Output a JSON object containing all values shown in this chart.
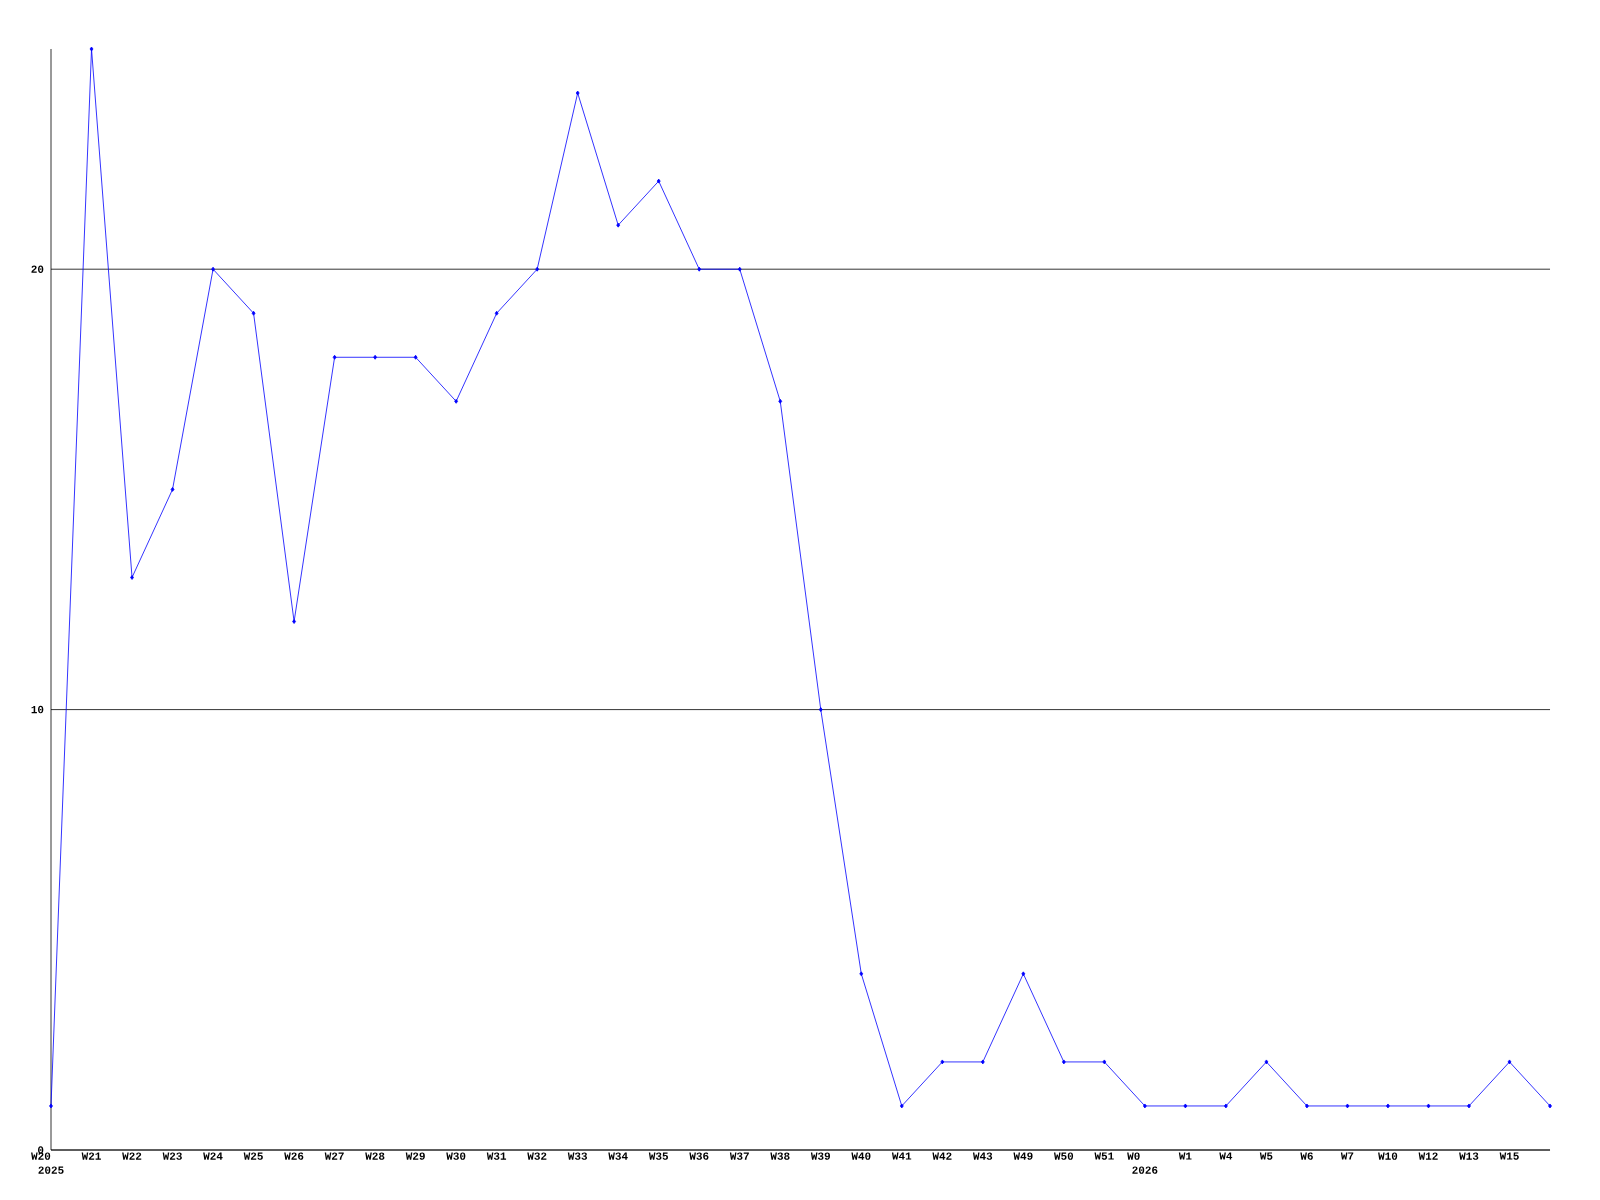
{
  "chart_data": {
    "type": "line",
    "categories": [
      "W20 2025",
      "W21",
      "W22",
      "W23",
      "W24",
      "W25",
      "W26",
      "W27",
      "W28",
      "W29",
      "W30",
      "W31",
      "W32",
      "W33",
      "W34",
      "W35",
      "W36",
      "W37",
      "W38",
      "W39",
      "W40",
      "W41",
      "W42",
      "W43",
      "W49",
      "W50",
      "W51",
      "W0 2026",
      "W1",
      "W4",
      "W5",
      "W6",
      "W7",
      "W10",
      "W12",
      "W13",
      "W15",
      null
    ],
    "values": [
      1,
      25,
      13,
      15,
      20,
      19,
      12,
      18,
      18,
      18,
      17,
      19,
      20,
      24,
      21,
      22,
      20,
      20,
      17,
      10,
      4,
      1,
      2,
      2,
      4,
      2,
      2,
      1,
      1,
      1,
      2,
      1,
      1,
      1,
      1,
      1,
      2,
      1
    ],
    "color": "#0000ff",
    "ylim": [
      0,
      25
    ],
    "yticks": [
      0,
      10,
      20
    ],
    "grid": "y",
    "marker": "diamond",
    "line_style": "solid"
  }
}
